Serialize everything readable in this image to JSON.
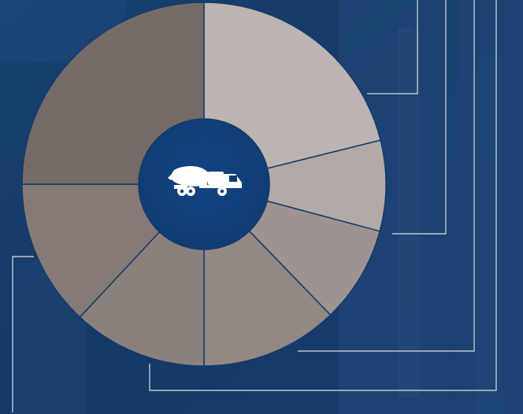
{
  "theme": {
    "background": "#163a6b",
    "background_dark": "#0f2f5d",
    "background_light": "#24508a",
    "hub": "#0f3a70",
    "divider": "#163a6b",
    "leader_line": "#c9cdd5",
    "icon": "#ffffff"
  },
  "wheel": {
    "segment_count": 7,
    "segments": [
      {
        "name": "segment-1",
        "color": "#bcb4b0"
      },
      {
        "name": "segment-2",
        "color": "#b2aaa6"
      },
      {
        "name": "segment-3",
        "color": "#9d9390"
      },
      {
        "name": "segment-4",
        "color": "#928884"
      },
      {
        "name": "segment-5",
        "color": "#8b817c"
      },
      {
        "name": "segment-6",
        "color": "#857a75"
      },
      {
        "name": "segment-7",
        "color": "#756b66"
      }
    ]
  },
  "hub": {
    "icon": "concrete-mixer-truck-icon"
  }
}
